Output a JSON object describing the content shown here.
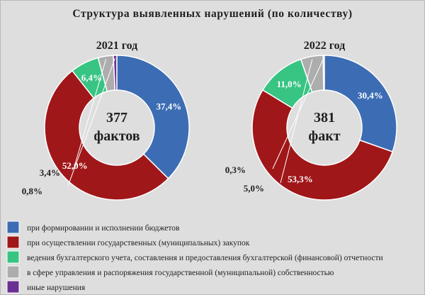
{
  "chart_data": {
    "type": "donut",
    "title": "Структура  выявленных  нарушений  (по количеству)",
    "colors": [
      "#3c6db4",
      "#a01719",
      "#38c483",
      "#adadad",
      "#6a2f92"
    ],
    "legend": [
      "при формировании и исполнении бюджетов",
      "при осуществлении государственных (муниципальных) закупок",
      "ведения бухгалтерского  учета, составления и предоставления бухгалтерской  (финансовой) отчетности",
      "в сфере  управления и распоряжения государственной (муниципальной) собственностью",
      "иные нарушения"
    ],
    "legend_position": "bottom-left",
    "charts": [
      {
        "year": "2021 год",
        "center_value": "377",
        "center_unit": "фактов",
        "values": [
          37.4,
          52.0,
          6.4,
          3.4,
          0.8
        ],
        "labels": [
          "37,4%",
          "52,0%",
          "6,4%",
          "3,4%",
          "0,8%"
        ]
      },
      {
        "year": "2022 год",
        "center_value": "381",
        "center_unit": "факт",
        "values": [
          30.4,
          53.3,
          11.0,
          5.0,
          0.3
        ],
        "labels": [
          "30,4%",
          "53,3%",
          "11,0%",
          "5,0%",
          "0,3%"
        ]
      }
    ]
  }
}
